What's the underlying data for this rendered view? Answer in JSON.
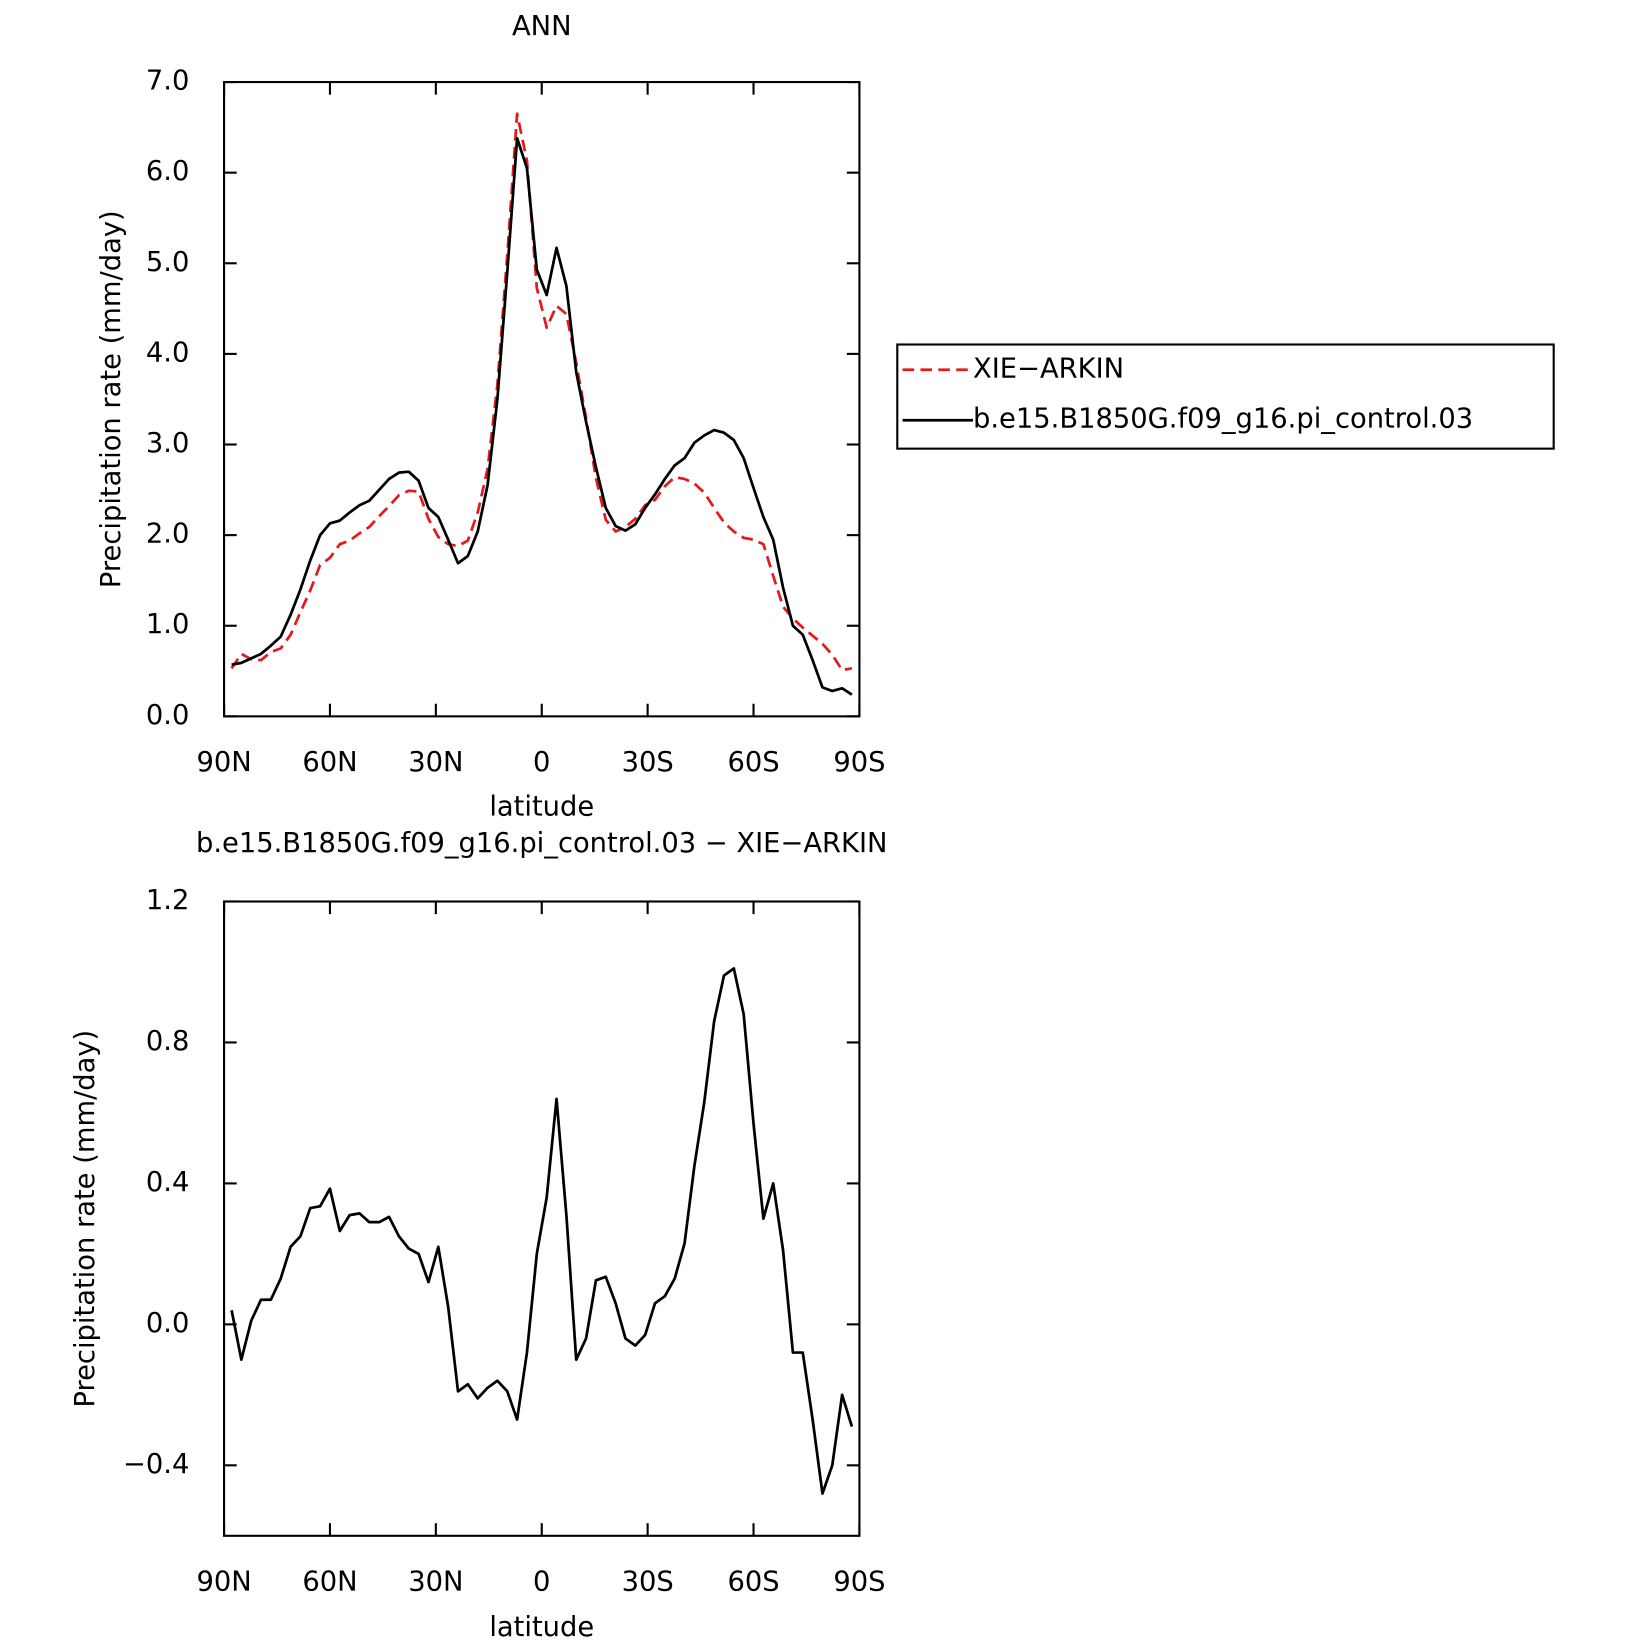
{
  "chart_data": [
    {
      "type": "line",
      "title": "ANN",
      "xlabel": "latitude",
      "ylabel": "Precipitation rate (mm/day)",
      "x": [
        87.86,
        85.1,
        82.31,
        79.53,
        76.74,
        73.95,
        71.16,
        68.37,
        65.58,
        62.79,
        60.0,
        57.21,
        54.42,
        51.63,
        48.84,
        46.04,
        43.25,
        40.46,
        37.67,
        34.88,
        32.09,
        29.3,
        26.51,
        23.72,
        20.93,
        18.14,
        15.35,
        12.56,
        9.77,
        6.98,
        4.19,
        1.4,
        -1.4,
        -4.19,
        -6.98,
        -9.77,
        -12.56,
        -15.35,
        -18.14,
        -20.93,
        -23.72,
        -26.51,
        -29.3,
        -32.09,
        -34.88,
        -37.67,
        -40.46,
        -43.25,
        -46.04,
        -48.84,
        -51.63,
        -54.42,
        -57.21,
        -60.0,
        -62.79,
        -65.58,
        -68.37,
        -71.16,
        -73.95,
        -76.74,
        -79.53,
        -82.31,
        -85.1,
        -87.86
      ],
      "series": [
        {
          "name": "XIE−ARKIN",
          "color": "#e41a1c",
          "dashed": true,
          "values": [
            0.53,
            0.69,
            0.63,
            0.62,
            0.71,
            0.75,
            0.9,
            1.15,
            1.39,
            1.67,
            1.75,
            1.9,
            1.94,
            2.02,
            2.09,
            2.21,
            2.32,
            2.44,
            2.49,
            2.48,
            2.18,
            1.98,
            1.9,
            1.88,
            1.94,
            2.25,
            2.73,
            3.66,
            5.09,
            6.65,
            6.13,
            4.73,
            4.29,
            4.53,
            4.44,
            3.9,
            3.29,
            2.63,
            2.17,
            2.04,
            2.09,
            2.18,
            2.33,
            2.39,
            2.54,
            2.64,
            2.62,
            2.57,
            2.47,
            2.3,
            2.14,
            2.04,
            1.97,
            1.95,
            1.9,
            1.55,
            1.21,
            1.08,
            0.98,
            0.89,
            0.8,
            0.68,
            0.51,
            0.53
          ]
        },
        {
          "name": "b.e15.B1850G.f09_g16.pi_control.03",
          "color": "#000000",
          "dashed": false,
          "values": [
            0.57,
            0.59,
            0.64,
            0.69,
            0.78,
            0.88,
            1.12,
            1.4,
            1.72,
            2.0,
            2.13,
            2.16,
            2.25,
            2.33,
            2.38,
            2.5,
            2.62,
            2.69,
            2.7,
            2.6,
            2.3,
            2.2,
            1.95,
            1.69,
            1.77,
            2.04,
            2.55,
            3.5,
            4.9,
            6.38,
            6.05,
            4.93,
            4.65,
            5.17,
            4.75,
            3.8,
            3.25,
            2.75,
            2.3,
            2.1,
            2.05,
            2.12,
            2.3,
            2.45,
            2.62,
            2.77,
            2.85,
            3.02,
            3.1,
            3.16,
            3.13,
            3.05,
            2.85,
            2.52,
            2.2,
            1.95,
            1.42,
            1.0,
            0.9,
            0.62,
            0.32,
            0.28,
            0.31,
            0.24
          ]
        }
      ],
      "xlim": [
        90,
        -90
      ],
      "xticks": [
        {
          "value": 90,
          "label": "90N"
        },
        {
          "value": 60,
          "label": "60N"
        },
        {
          "value": 30,
          "label": "30N"
        },
        0,
        {
          "value": -30,
          "label": "30S"
        },
        {
          "value": -60,
          "label": "60S"
        },
        {
          "value": -90,
          "label": "90S"
        }
      ],
      "ylim": [
        0,
        7
      ],
      "yticks": [
        {
          "value": 0,
          "label": "0.0"
        },
        {
          "value": 1,
          "label": "1.0"
        },
        {
          "value": 2,
          "label": "2.0"
        },
        {
          "value": 3,
          "label": "3.0"
        },
        {
          "value": 4,
          "label": "4.0"
        },
        {
          "value": 5,
          "label": "5.0"
        },
        {
          "value": 6,
          "label": "6.0"
        },
        {
          "value": 7,
          "label": "7.0"
        }
      ],
      "legend": "right"
    },
    {
      "type": "line",
      "title": "b.e15.B1850G.f09_g16.pi_control.03 − XIE−ARKIN",
      "xlabel": "latitude",
      "ylabel": "Precipitation rate (mm/day)",
      "x": [
        87.86,
        85.1,
        82.31,
        79.53,
        76.74,
        73.95,
        71.16,
        68.37,
        65.58,
        62.79,
        60.0,
        57.21,
        54.42,
        51.63,
        48.84,
        46.04,
        43.25,
        40.46,
        37.67,
        34.88,
        32.09,
        29.3,
        26.51,
        23.72,
        20.93,
        18.14,
        15.35,
        12.56,
        9.77,
        6.98,
        4.19,
        1.4,
        -1.4,
        -4.19,
        -6.98,
        -9.77,
        -12.56,
        -15.35,
        -18.14,
        -20.93,
        -23.72,
        -26.51,
        -29.3,
        -32.09,
        -34.88,
        -37.67,
        -40.46,
        -43.25,
        -46.04,
        -48.84,
        -51.63,
        -54.42,
        -57.21,
        -60.0,
        -62.79,
        -65.58,
        -68.37,
        -71.16,
        -73.95,
        -76.74,
        -79.53,
        -82.31,
        -85.1,
        -87.86
      ],
      "series": [
        {
          "color": "#000000",
          "dashed": false,
          "values": [
            0.04,
            -0.1,
            0.01,
            0.07,
            0.07,
            0.13,
            0.22,
            0.25,
            0.33,
            0.335,
            0.385,
            0.265,
            0.31,
            0.315,
            0.29,
            0.29,
            0.305,
            0.25,
            0.215,
            0.2,
            0.12,
            0.22,
            0.05,
            -0.19,
            -0.17,
            -0.21,
            -0.18,
            -0.16,
            -0.19,
            -0.27,
            -0.08,
            0.2,
            0.36,
            0.64,
            0.31,
            -0.1,
            -0.04,
            0.125,
            0.135,
            0.06,
            -0.04,
            -0.06,
            -0.03,
            0.06,
            0.08,
            0.13,
            0.23,
            0.45,
            0.63,
            0.86,
            0.99,
            1.01,
            0.88,
            0.57,
            0.3,
            0.4,
            0.21,
            -0.08,
            -0.08,
            -0.27,
            -0.48,
            -0.4,
            -0.2,
            -0.29
          ]
        }
      ],
      "xlim": [
        90,
        -90
      ],
      "xticks": [
        {
          "value": 90,
          "label": "90N"
        },
        {
          "value": 60,
          "label": "60N"
        },
        {
          "value": 30,
          "label": "30N"
        },
        0,
        {
          "value": -30,
          "label": "30S"
        },
        {
          "value": -60,
          "label": "60S"
        },
        {
          "value": -90,
          "label": "90S"
        }
      ],
      "ylim": [
        -0.6,
        1.2
      ],
      "yticks": [
        {
          "value": -0.4,
          "label": "−0.4"
        },
        {
          "value": 0,
          "label": "0.0"
        },
        0.4,
        0.8,
        1.2
      ]
    }
  ]
}
